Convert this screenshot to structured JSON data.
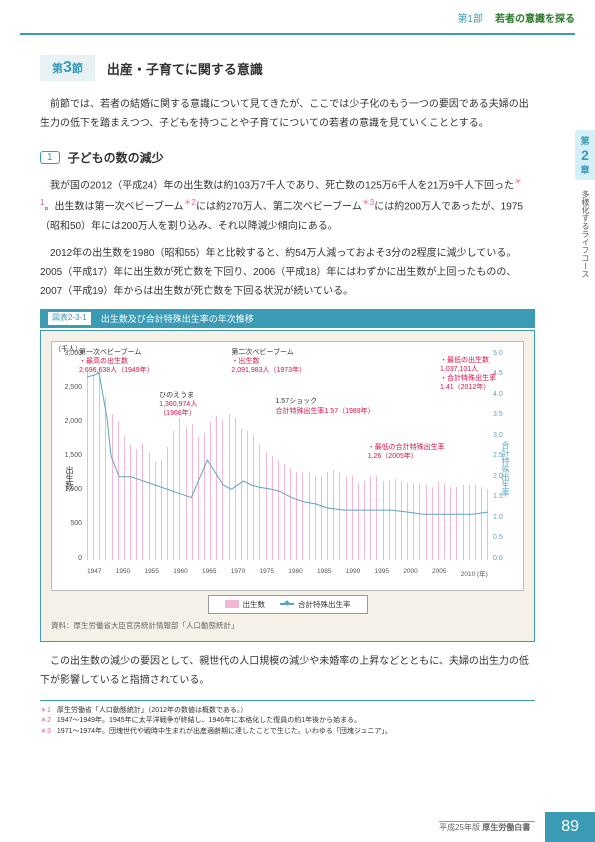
{
  "header": {
    "part": "第1部",
    "title": "若者の意識を探る"
  },
  "side_tab": {
    "prefix": "第",
    "num": "2",
    "suffix": "章"
  },
  "side_text": "多様化するライフコース",
  "section": {
    "badge_prefix": "第",
    "badge_num": "3",
    "badge_suffix": "節",
    "title": "出産・子育てに関する意識"
  },
  "intro": "前節では、若者の結婚に関する意識について見てきたが、ここでは少子化のもう一つの要因である夫婦の出生力の低下を踏まえつつ、子どもを持つことや子育てについての若者の意識を見ていくこととする。",
  "subsection": {
    "num": "1",
    "title": "子どもの数の減少"
  },
  "para1": "我が国の2012（平成24）年の出生数は約103万7千人であり、死亡数の125万6千人を21万9千人下回った",
  "para1b": "。出生数は第一次ベビーブーム",
  "para1c": "には約270万人、第二次ベビーブーム",
  "para1d": "には約200万人であったが、1975（昭和50）年には200万人を割り込み、それ以降減少傾向にある。",
  "para2": "2012年の出生数を1980（昭和55）年と比較すると、約54万人減っておよそ3分の2程度に減少している。2005（平成17）年に出生数が死亡数を下回り、2006（平成18）年にはわずかに出生数が上回ったものの、2007（平成19）年からは出生数が死亡数を下回る状況が続いている。",
  "chart": {
    "label": "図表2-3-1",
    "title": "出生数及び合計特殊出生率の年次推移",
    "unit_left": "（千人）",
    "y_left": [
      "3,000",
      "2,500",
      "2,000",
      "1,500",
      "1,000",
      "500",
      "0"
    ],
    "y_right": [
      "5.0",
      "4.5",
      "4.0",
      "3.5",
      "3.0",
      "2.5",
      "2.0",
      "1.5",
      "1.0",
      "0.5",
      "0.0"
    ],
    "x_ticks": [
      "1947",
      "1950",
      "1955",
      "1960",
      "1965",
      "1970",
      "1975",
      "1980",
      "1985",
      "1990",
      "1995",
      "2000",
      "2005",
      "2010 (年)"
    ],
    "axis_left": "出生数",
    "axis_right": "合計特殊出生率",
    "bar_heights_pct": [
      90,
      89,
      90,
      78,
      70,
      66,
      59,
      55,
      53,
      56,
      52,
      47,
      48,
      54,
      62,
      68,
      64,
      65,
      59,
      61,
      66,
      69,
      67,
      70,
      68,
      63,
      62,
      60,
      55,
      52,
      50,
      48,
      46,
      44,
      42,
      42,
      42,
      40,
      40,
      42,
      43,
      42,
      40,
      40,
      37,
      38,
      40,
      40,
      38,
      38,
      39,
      38,
      37,
      37,
      37,
      36,
      35,
      38,
      37,
      35,
      35,
      36,
      36,
      36,
      35,
      34
    ],
    "line_points": "0,12 2,11 3,10 5,32 6,50 8,60 11,60 14,62 17,64 20,66 23,68 26,70 30,52 32,58 34,64 36,66 39,62 41,64 43,65 46,66 48,67 51,70 54,72 57,73 60,75 64,76 68,76 72,76 76,76 80,77 84,78 88,78 92,78 96,78 100,77",
    "ann1": {
      "t1": "第一次ベビーブーム",
      "t2": "・最高の出生数",
      "t3": "2,696,638人（1949年）"
    },
    "ann2": {
      "t1": "第二次ベビーブーム",
      "t2": "・出生数",
      "t3": "2,091,983人（1973年）"
    },
    "ann3": {
      "t1": "・最低の出生数",
      "t2": "1,037,101人",
      "t3": "・合計特殊出生率",
      "t4": "1.41（2012年）"
    },
    "ann4": {
      "t1": "ひのえうま",
      "t2": "1,360,974人",
      "t3": "（1966年）"
    },
    "ann5": {
      "t1": "1.57ショック",
      "t2": "合計特殊出生率1.57（1989年）"
    },
    "ann6": {
      "t1": "・最低の合計特殊出生率",
      "t2": "1.26（2005年）"
    },
    "legend": {
      "bars": "出生数",
      "line": "合計特殊出生率"
    },
    "source": "資料：厚生労働省大臣官房統計情報部「人口動態統計」"
  },
  "closing": "この出生数の減少の要因として、親世代の人口規模の減少や未婚率の上昇などとともに、夫婦の出生力の低下が影響していると指摘されている。",
  "footnotes": [
    {
      "num": "＊1",
      "text": "厚生労働省「人口動態統計」（2012年の数値は概数である。）"
    },
    {
      "num": "＊2",
      "text": "1947〜1949年。1945年に太平洋戦争が終結し、1946年に本格化した復員の約1年後から始まる。"
    },
    {
      "num": "＊3",
      "text": "1971〜1974年。団塊世代や戦時中生まれが出産適齢期に達したことで生じた。いわゆる「団塊ジュニア」。"
    }
  ],
  "footer": {
    "edition": "平成25年版",
    "book": "厚生労働白書",
    "page": "89"
  },
  "sup": {
    "s1": "＊1",
    "s2": "＊2",
    "s3": "＊3"
  }
}
